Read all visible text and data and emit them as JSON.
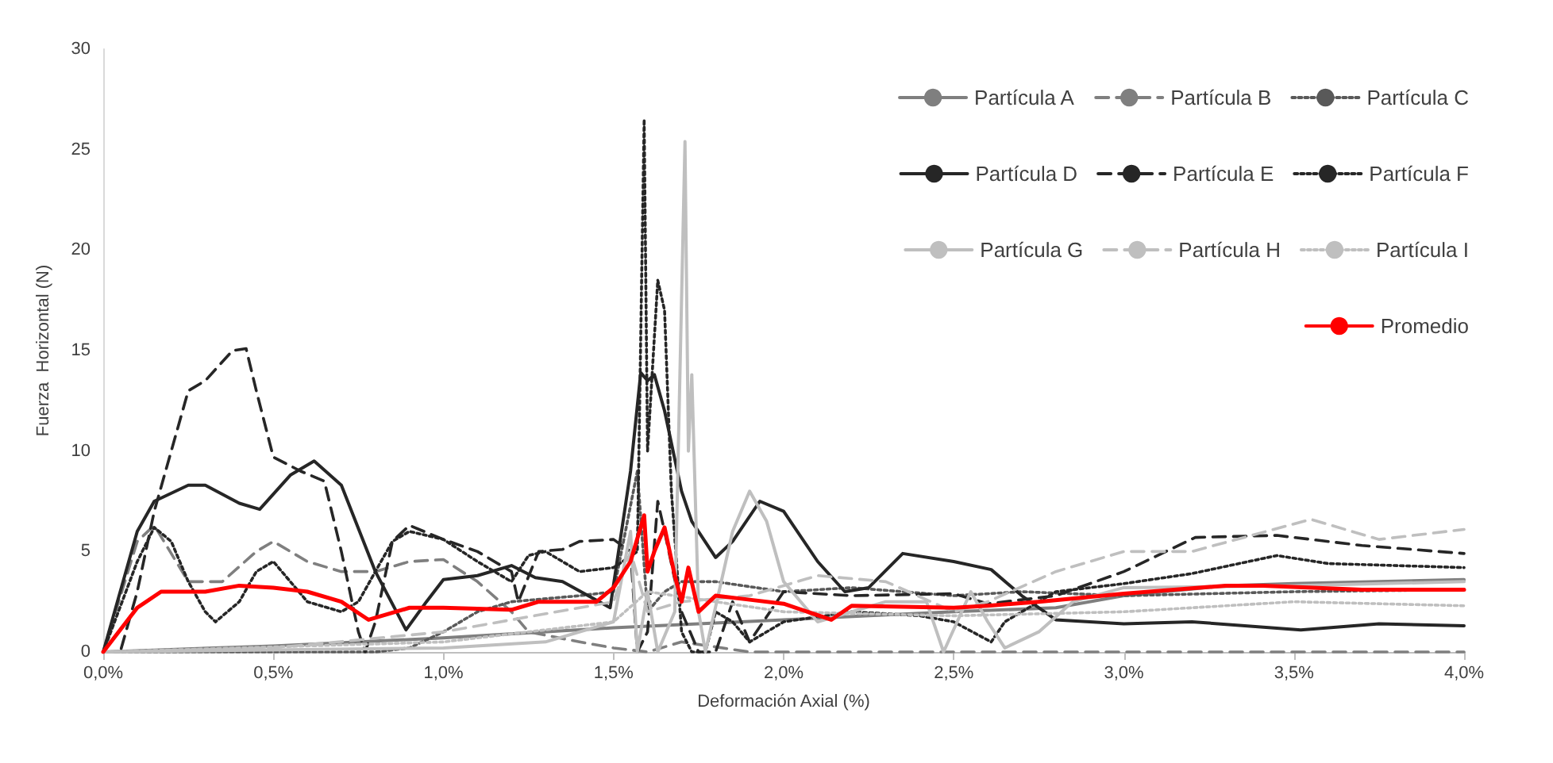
{
  "chart_data": {
    "type": "line",
    "xlabel": "Deformación Axial (%)",
    "ylabel": "Fuerza  Horizontal (N)",
    "xlim": [
      0,
      4
    ],
    "ylim": [
      0,
      30
    ],
    "xticks": [
      {
        "value": 0,
        "label": "0,0%"
      },
      {
        "value": 0.5,
        "label": "0,5%"
      },
      {
        "value": 1,
        "label": "1,0%"
      },
      {
        "value": 1.5,
        "label": "1,5%"
      },
      {
        "value": 2,
        "label": "2,0%"
      },
      {
        "value": 2.5,
        "label": "2,5%"
      },
      {
        "value": 3,
        "label": "3,0%"
      },
      {
        "value": 3.5,
        "label": "3,5%"
      },
      {
        "value": 4,
        "label": "4,0%"
      }
    ],
    "yticks": [
      0,
      5,
      10,
      15,
      20,
      25,
      30
    ],
    "grid": false,
    "legend": "top right",
    "marker": "none",
    "series": [
      {
        "name": "Partícula A",
        "color": "#7f7f7f",
        "line_style": "solid",
        "x": [
          0,
          0.5,
          1,
          1.5,
          2,
          2.5,
          2.8,
          3,
          3.3,
          3.5,
          4
        ],
        "values": [
          0,
          0.3,
          0.7,
          1.2,
          1.6,
          2,
          2.2,
          2.8,
          3.3,
          3.4,
          3.6
        ]
      },
      {
        "name": "Partícula B",
        "color": "#7f7f7f",
        "line_style": "dashed",
        "x": [
          0,
          0.1,
          0.15,
          0.25,
          0.35,
          0.45,
          0.5,
          0.6,
          0.7,
          0.8,
          0.9,
          1,
          1.1,
          1.2,
          1.25,
          1.4,
          1.5,
          1.6,
          1.7,
          1.9,
          4
        ],
        "values": [
          0,
          5.5,
          6.3,
          3.5,
          3.5,
          5,
          5.5,
          4.5,
          4,
          4,
          4.5,
          4.6,
          3.5,
          2,
          1,
          0.5,
          0.2,
          0,
          0.5,
          0,
          0
        ]
      },
      {
        "name": "Partícula C",
        "color": "#595959",
        "line_style": "dotted",
        "x": [
          0,
          0.8,
          0.9,
          1,
          1.1,
          1.2,
          1.4,
          1.5,
          1.57,
          1.6,
          1.65,
          1.7,
          1.8,
          2,
          2.2,
          2.5,
          2.7,
          3,
          3.5,
          4
        ],
        "values": [
          0,
          0,
          0.2,
          1,
          2,
          2.5,
          2.8,
          3,
          9,
          2,
          3,
          3.5,
          3.5,
          3,
          3.2,
          2.8,
          3,
          2.8,
          3,
          3.1
        ]
      },
      {
        "name": "Partícula D",
        "color": "#262626",
        "line_style": "solid",
        "x": [
          0,
          0.1,
          0.15,
          0.25,
          0.3,
          0.4,
          0.46,
          0.55,
          0.62,
          0.7,
          0.8,
          0.89,
          0.95,
          1,
          1.1,
          1.2,
          1.27,
          1.35,
          1.49,
          1.55,
          1.58,
          1.6,
          1.62,
          1.65,
          1.7,
          1.73,
          1.8,
          1.85,
          1.93,
          2,
          2.1,
          2.18,
          2.25,
          2.35,
          2.5,
          2.61,
          2.7,
          2.8,
          3,
          3.2,
          3.52,
          3.75,
          4
        ],
        "values": [
          0,
          6,
          7.5,
          8.3,
          8.3,
          7.4,
          7.1,
          8.8,
          9.5,
          8.3,
          4,
          1.1,
          2.5,
          3.6,
          3.8,
          4.3,
          3.7,
          3.5,
          2.2,
          9,
          13.9,
          13.5,
          13.8,
          12,
          8,
          6.5,
          4.7,
          5.5,
          7.5,
          7,
          4.5,
          3,
          3.2,
          4.9,
          4.5,
          4.1,
          2.8,
          1.6,
          1.4,
          1.5,
          1.1,
          1.4,
          1.3
        ]
      },
      {
        "name": "Partícula E",
        "color": "#262626",
        "line_style": "dashed",
        "x": [
          0,
          0.05,
          0.1,
          0.15,
          0.2,
          0.25,
          0.3,
          0.38,
          0.42,
          0.45,
          0.5,
          0.58,
          0.65,
          0.7,
          0.75,
          0.77,
          0.8,
          0.85,
          0.9,
          1,
          1.1,
          1.2,
          1.22,
          1.28,
          1.35,
          1.4,
          1.5,
          1.55,
          1.57,
          1.6,
          1.63,
          1.65,
          1.7,
          1.75,
          1.8,
          1.85,
          1.9,
          2,
          2.2,
          2.5,
          2.6,
          2.8,
          3,
          3.21,
          3.45,
          3.7,
          4
        ],
        "values": [
          0,
          0,
          3,
          7,
          10,
          13,
          13.5,
          15,
          15.1,
          13,
          9.7,
          9,
          8.5,
          5,
          1,
          0,
          1.5,
          5.5,
          6.3,
          5.6,
          5,
          4,
          2.5,
          5,
          5.1,
          5.5,
          5.6,
          5,
          0,
          1,
          7.5,
          6,
          2,
          0,
          0,
          2.5,
          0.5,
          3,
          2.8,
          2.9,
          2.4,
          2.8,
          4,
          5.7,
          5.8,
          5.3,
          4.9
        ]
      },
      {
        "name": "Partícula F",
        "color": "#262626",
        "line_style": "dotted",
        "x": [
          0,
          0.1,
          0.15,
          0.2,
          0.25,
          0.3,
          0.33,
          0.4,
          0.45,
          0.5,
          0.55,
          0.6,
          0.7,
          0.75,
          0.85,
          0.9,
          1,
          1.1,
          1.2,
          1.25,
          1.3,
          1.4,
          1.5,
          1.57,
          1.59,
          1.6,
          1.63,
          1.65,
          1.67,
          1.7,
          1.73,
          1.77,
          1.8,
          1.85,
          1.9,
          2,
          2.2,
          2.4,
          2.5,
          2.61,
          2.65,
          2.8,
          3,
          3.2,
          3.45,
          3.6,
          4
        ],
        "values": [
          0,
          4.5,
          6.2,
          5.5,
          3.5,
          2,
          1.5,
          2.5,
          4,
          4.5,
          3.5,
          2.5,
          2,
          2.5,
          5.5,
          6,
          5.6,
          4.5,
          3.5,
          4.8,
          5,
          4,
          4.2,
          5,
          26.5,
          10,
          18.5,
          17,
          8,
          1,
          0,
          0,
          2,
          1.5,
          0.5,
          1.5,
          2,
          1.8,
          1.5,
          0.5,
          1.5,
          3,
          3.4,
          3.9,
          4.8,
          4.4,
          4.2
        ]
      },
      {
        "name": "Partícula G",
        "color": "#bfbfbf",
        "line_style": "solid",
        "x": [
          0,
          1,
          1.3,
          1.5,
          1.55,
          1.57,
          1.6,
          1.63,
          1.68,
          1.71,
          1.72,
          1.73,
          1.75,
          1.77,
          1.85,
          1.9,
          1.95,
          2,
          2.1,
          2.3,
          2.42,
          2.47,
          2.55,
          2.6,
          2.65,
          2.75,
          2.85,
          3,
          3.5,
          4
        ],
        "values": [
          0,
          0.2,
          0.5,
          1.5,
          6,
          0,
          3,
          0,
          2,
          25.4,
          10,
          13.8,
          2,
          0,
          6,
          8,
          6.5,
          3.5,
          1.5,
          2.5,
          2.5,
          0,
          3,
          1.5,
          0.2,
          1,
          2.5,
          3.2,
          3.3,
          3.5
        ]
      },
      {
        "name": "Partícula H",
        "color": "#bfbfbf",
        "line_style": "dashed",
        "x": [
          0,
          0.5,
          1,
          1.5,
          1.55,
          1.6,
          1.7,
          1.9,
          2.1,
          2.3,
          2.5,
          2.6,
          2.8,
          3,
          3.2,
          3.55,
          3.75,
          4
        ],
        "values": [
          0,
          0.2,
          1,
          2.5,
          5,
          2,
          2.5,
          2.8,
          3.8,
          3.5,
          2,
          2.5,
          4,
          5,
          5,
          6.6,
          5.6,
          6.1
        ]
      },
      {
        "name": "Partícula I",
        "color": "#bfbfbf",
        "line_style": "dotted",
        "x": [
          0,
          1,
          1.5,
          1.6,
          1.8,
          2,
          2.5,
          3,
          3.5,
          4
        ],
        "values": [
          0,
          0.5,
          1.5,
          3,
          2.5,
          2,
          1.8,
          2,
          2.5,
          2.3
        ]
      },
      {
        "name": "Promedio",
        "color": "#ff0000",
        "line_style": "solid",
        "x": [
          0,
          0.1,
          0.17,
          0.3,
          0.4,
          0.5,
          0.6,
          0.7,
          0.78,
          0.9,
          1,
          1.2,
          1.28,
          1.45,
          1.5,
          1.55,
          1.59,
          1.6,
          1.62,
          1.65,
          1.68,
          1.7,
          1.72,
          1.75,
          1.8,
          1.9,
          2,
          2.14,
          2.2,
          2.5,
          2.6,
          2.75,
          3,
          3.3,
          3.41,
          3.7,
          4
        ],
        "values": [
          0,
          2.2,
          3,
          3,
          3.3,
          3.2,
          3,
          2.5,
          1.6,
          2.2,
          2.2,
          2.1,
          2.5,
          2.5,
          3.2,
          4.5,
          6.8,
          4,
          5,
          6.2,
          3.8,
          2.5,
          4.2,
          2,
          2.8,
          2.6,
          2.4,
          1.6,
          2.3,
          2.2,
          2.3,
          2.5,
          2.9,
          3.3,
          3.3,
          3.1,
          3.1
        ]
      }
    ]
  }
}
